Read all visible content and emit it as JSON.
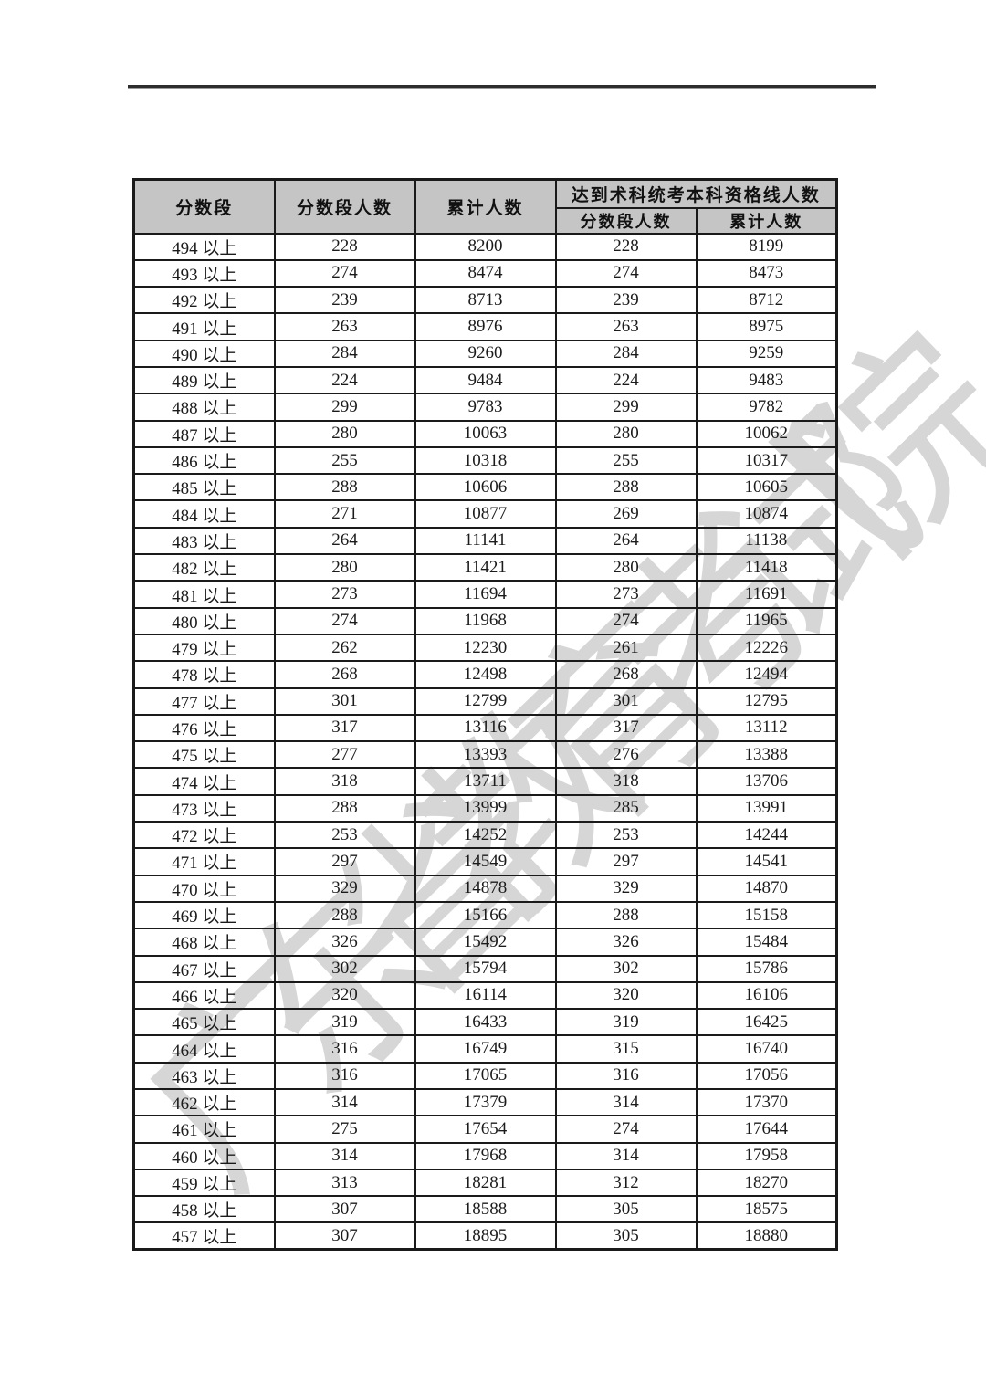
{
  "page": {
    "watermark": "广东省教育考试院"
  },
  "colors": {
    "header_bg": "#c5c5c5",
    "table_border": "#1a1a1a",
    "text": "#1b1b1b",
    "top_rule": "#2d2d2d",
    "watermark": "#c9c9c9"
  },
  "table": {
    "headers": {
      "score_range": "分数段",
      "range_count": "分数段人数",
      "cumulative_count": "累计人数",
      "qualified_group": "达到术科统考本科资格线人数",
      "qualified_range_count": "分数段人数",
      "qualified_cumulative_count": "累计人数"
    },
    "row_format": [
      "score_range",
      "range_count",
      "cumulative_count",
      "qualified_range_count",
      "qualified_cumulative_count"
    ],
    "rows": [
      [
        "494 以上",
        "228",
        "8200",
        "228",
        "8199"
      ],
      [
        "493 以上",
        "274",
        "8474",
        "274",
        "8473"
      ],
      [
        "492 以上",
        "239",
        "8713",
        "239",
        "8712"
      ],
      [
        "491 以上",
        "263",
        "8976",
        "263",
        "8975"
      ],
      [
        "490 以上",
        "284",
        "9260",
        "284",
        "9259"
      ],
      [
        "489 以上",
        "224",
        "9484",
        "224",
        "9483"
      ],
      [
        "488 以上",
        "299",
        "9783",
        "299",
        "9782"
      ],
      [
        "487 以上",
        "280",
        "10063",
        "280",
        "10062"
      ],
      [
        "486 以上",
        "255",
        "10318",
        "255",
        "10317"
      ],
      [
        "485 以上",
        "288",
        "10606",
        "288",
        "10605"
      ],
      [
        "484 以上",
        "271",
        "10877",
        "269",
        "10874"
      ],
      [
        "483 以上",
        "264",
        "11141",
        "264",
        "11138"
      ],
      [
        "482 以上",
        "280",
        "11421",
        "280",
        "11418"
      ],
      [
        "481 以上",
        "273",
        "11694",
        "273",
        "11691"
      ],
      [
        "480 以上",
        "274",
        "11968",
        "274",
        "11965"
      ],
      [
        "479 以上",
        "262",
        "12230",
        "261",
        "12226"
      ],
      [
        "478 以上",
        "268",
        "12498",
        "268",
        "12494"
      ],
      [
        "477 以上",
        "301",
        "12799",
        "301",
        "12795"
      ],
      [
        "476 以上",
        "317",
        "13116",
        "317",
        "13112"
      ],
      [
        "475 以上",
        "277",
        "13393",
        "276",
        "13388"
      ],
      [
        "474 以上",
        "318",
        "13711",
        "318",
        "13706"
      ],
      [
        "473 以上",
        "288",
        "13999",
        "285",
        "13991"
      ],
      [
        "472 以上",
        "253",
        "14252",
        "253",
        "14244"
      ],
      [
        "471 以上",
        "297",
        "14549",
        "297",
        "14541"
      ],
      [
        "470 以上",
        "329",
        "14878",
        "329",
        "14870"
      ],
      [
        "469 以上",
        "288",
        "15166",
        "288",
        "15158"
      ],
      [
        "468 以上",
        "326",
        "15492",
        "326",
        "15484"
      ],
      [
        "467 以上",
        "302",
        "15794",
        "302",
        "15786"
      ],
      [
        "466 以上",
        "320",
        "16114",
        "320",
        "16106"
      ],
      [
        "465 以上",
        "319",
        "16433",
        "319",
        "16425"
      ],
      [
        "464 以上",
        "316",
        "16749",
        "315",
        "16740"
      ],
      [
        "463 以上",
        "316",
        "17065",
        "316",
        "17056"
      ],
      [
        "462 以上",
        "314",
        "17379",
        "314",
        "17370"
      ],
      [
        "461 以上",
        "275",
        "17654",
        "274",
        "17644"
      ],
      [
        "460 以上",
        "314",
        "17968",
        "314",
        "17958"
      ],
      [
        "459 以上",
        "313",
        "18281",
        "312",
        "18270"
      ],
      [
        "458 以上",
        "307",
        "18588",
        "305",
        "18575"
      ],
      [
        "457 以上",
        "307",
        "18895",
        "305",
        "18880"
      ]
    ]
  }
}
